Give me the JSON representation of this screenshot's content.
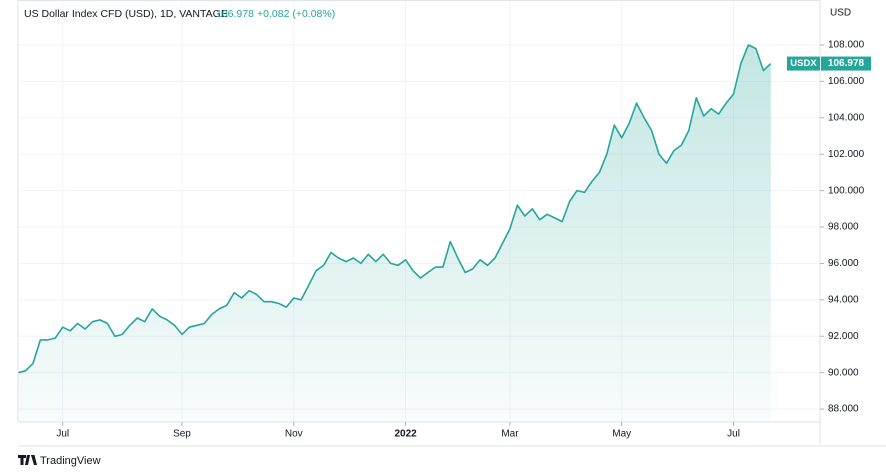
{
  "header": {
    "title": "US Dollar Index CFD (USD), 1D, VANTAGE",
    "last_price": "106.978",
    "change": "+0.082 (+0.08%)"
  },
  "footer": {
    "brand": "TradingView"
  },
  "chart_data": {
    "type": "area",
    "y_axis_label": "USD",
    "series": [
      {
        "name": "USDX",
        "color": "#26a69a",
        "values": [
          90.0,
          90.1,
          90.5,
          91.8,
          91.8,
          91.9,
          92.5,
          92.3,
          92.7,
          92.4,
          92.8,
          92.9,
          92.7,
          92.0,
          92.1,
          92.6,
          93.0,
          92.8,
          93.5,
          93.1,
          92.9,
          92.6,
          92.1,
          92.5,
          92.6,
          92.7,
          93.2,
          93.5,
          93.7,
          94.4,
          94.1,
          94.5,
          94.3,
          93.9,
          93.9,
          93.8,
          93.6,
          94.1,
          94.0,
          94.8,
          95.6,
          95.9,
          96.6,
          96.3,
          96.1,
          96.3,
          96.0,
          96.5,
          96.1,
          96.5,
          96.0,
          95.9,
          96.2,
          95.6,
          95.2,
          95.5,
          95.8,
          95.8,
          97.2,
          96.3,
          95.5,
          95.7,
          96.2,
          95.9,
          96.3,
          97.1,
          97.9,
          99.2,
          98.6,
          99.0,
          98.4,
          98.7,
          98.5,
          98.3,
          99.4,
          100.0,
          99.9,
          100.5,
          101.0,
          102.0,
          103.6,
          102.9,
          103.7,
          104.8,
          104.0,
          103.3,
          102.0,
          101.5,
          102.2,
          102.5,
          103.3,
          105.1,
          104.1,
          104.5,
          104.2,
          104.8,
          105.3,
          107.0,
          108.0,
          107.8,
          106.6,
          106.978
        ]
      }
    ],
    "xlim": [
      0,
      107.6
    ],
    "xticks": [
      {
        "value": 6,
        "label": "Jul"
      },
      {
        "value": 22,
        "label": "Sep"
      },
      {
        "value": 37,
        "label": "Nov"
      },
      {
        "value": 52,
        "label": "2022"
      },
      {
        "value": 66,
        "label": "Mar"
      },
      {
        "value": 81,
        "label": "May"
      },
      {
        "value": 96,
        "label": "Jul"
      }
    ],
    "ylim": [
      87.29,
      110.47
    ],
    "yticks": [
      {
        "value": 88,
        "label": "88.000"
      },
      {
        "value": 90,
        "label": "90.000"
      },
      {
        "value": 92,
        "label": "92.000"
      },
      {
        "value": 94,
        "label": "94.000"
      },
      {
        "value": 96,
        "label": "96.000"
      },
      {
        "value": 98,
        "label": "98.000"
      },
      {
        "value": 100,
        "label": "100.000"
      },
      {
        "value": 102,
        "label": "102.000"
      },
      {
        "value": 104,
        "label": "104.000"
      },
      {
        "value": 106,
        "label": "106.000"
      },
      {
        "value": 108,
        "label": "108.000"
      }
    ],
    "grid": true
  }
}
